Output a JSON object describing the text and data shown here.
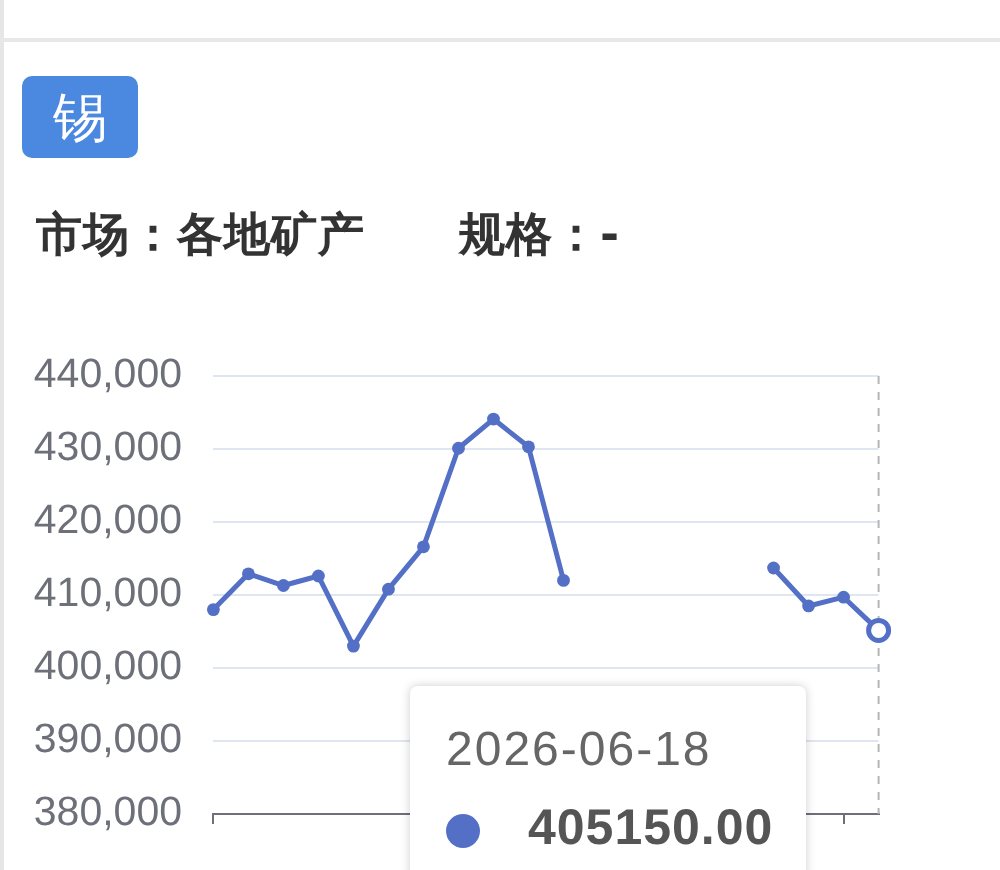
{
  "chart_data": {
    "type": "line",
    "title": "锡",
    "subtitle": "市场：各地矿产　　规格：-",
    "categories": [
      null,
      null,
      null,
      null,
      null,
      null,
      null,
      null,
      null,
      null,
      null,
      null,
      null,
      null,
      null,
      null,
      null,
      null,
      null,
      null
    ],
    "series": [
      {
        "color": "#5470c6",
        "values": [
          408000,
          412900,
          411300,
          412600,
          403000,
          410800,
          416600,
          430100,
          434100,
          430300,
          412000,
          null,
          null,
          null,
          null,
          null,
          null,
          null,
          null,
          null
        ]
      },
      {
        "color": "#5470c6",
        "values": [
          null,
          null,
          null,
          null,
          null,
          null,
          null,
          null,
          null,
          null,
          null,
          null,
          null,
          null,
          null,
          null,
          413700,
          408500,
          409700,
          405150
        ]
      }
    ],
    "ylim": [
      380000,
      440000
    ],
    "yticks": [
      {
        "value": 380000,
        "label": "380,000"
      },
      {
        "value": 390000,
        "label": "390,000"
      },
      {
        "value": 400000,
        "label": "400,000"
      },
      {
        "value": 410000,
        "label": "410,000"
      },
      {
        "value": 420000,
        "label": "420,000"
      },
      {
        "value": 430000,
        "label": "430,000"
      },
      {
        "value": 440000,
        "label": "440,000"
      }
    ],
    "grid": "y",
    "marker": "circle",
    "line_style": "solid",
    "tick_labels": "y",
    "annotations": [
      "2026-06-18",
      "405150.00"
    ]
  }
}
